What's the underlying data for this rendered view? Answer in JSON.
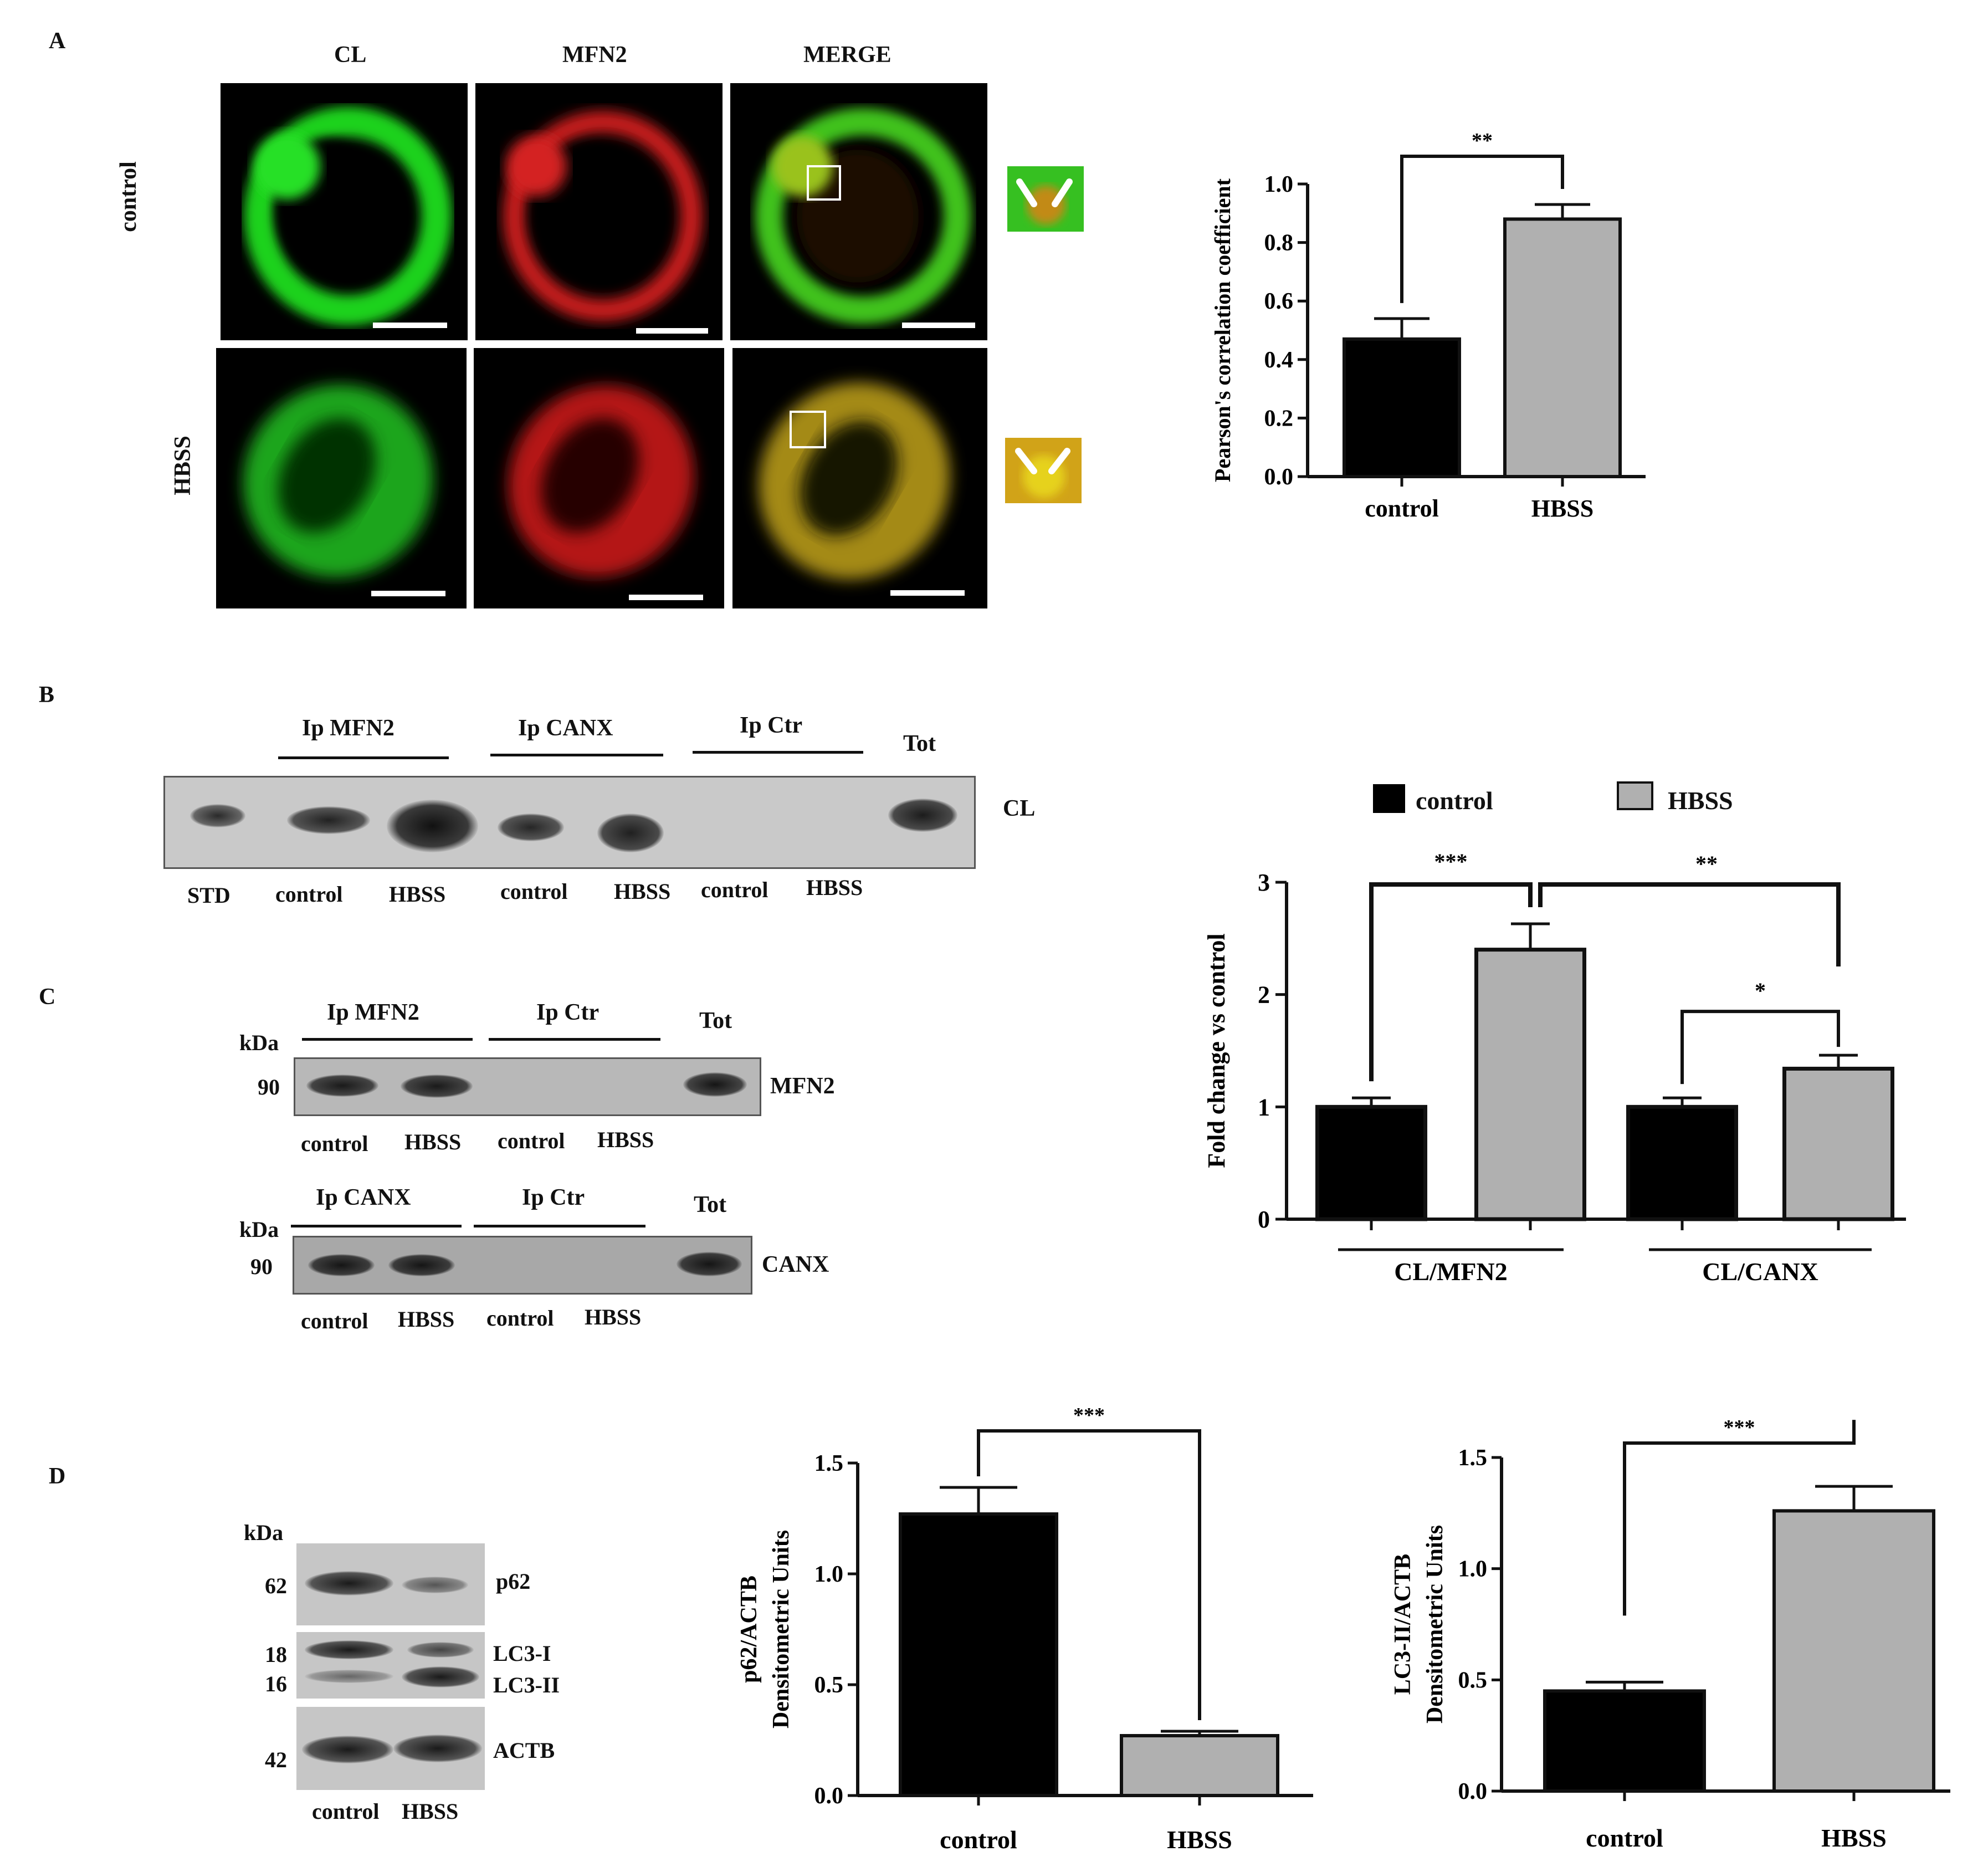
{
  "panels": {
    "A": {
      "letter": "A",
      "columns": [
        "CL",
        "MFN2",
        "MERGE"
      ],
      "rows": [
        "control",
        "HBSS"
      ]
    },
    "B": {
      "letter": "B",
      "groups": [
        "Ip MFN2",
        "Ip CANX",
        "Ip Ctr",
        "Tot"
      ],
      "lanes": [
        "STD",
        "control",
        "HBSS",
        "control",
        "HBSS",
        "control",
        "HBSS"
      ],
      "marker": "CL",
      "legend": {
        "control": "control",
        "hbss": "HBSS"
      }
    },
    "C": {
      "letter": "C",
      "top": {
        "kda": "kDa",
        "mw": "90",
        "groups": [
          "Ip MFN2",
          "Ip Ctr",
          "Tot"
        ],
        "lanes": [
          "control",
          "HBSS",
          "control",
          "HBSS"
        ],
        "marker": "MFN2"
      },
      "bottom": {
        "kda": "kDa",
        "mw": "90",
        "groups": [
          "Ip CANX",
          "Ip Ctr",
          "Tot"
        ],
        "lanes": [
          "control",
          "HBSS",
          "control",
          "HBSS"
        ],
        "marker": "CANX"
      }
    },
    "D": {
      "letter": "D",
      "kda": "kDa",
      "mws": [
        "62",
        "18",
        "16",
        "42"
      ],
      "markers": [
        "p62",
        "LC3-I",
        "LC3-II",
        "ACTB"
      ],
      "lanes": [
        "control",
        "HBSS"
      ]
    }
  },
  "chart_data": [
    {
      "type": "bar",
      "categories": [
        "control",
        "HBSS"
      ],
      "values": [
        0.47,
        0.88
      ],
      "errors": [
        0.07,
        0.05
      ],
      "ylabel": "Pearson's correlation coefficient",
      "ylim": [
        0,
        1.0
      ],
      "yticks": [
        "0.0",
        "0.2",
        "0.4",
        "0.6",
        "0.8",
        "1.0"
      ],
      "colors": [
        "#000000",
        "#b0b0b0"
      ],
      "significance": [
        {
          "between": [
            "control",
            "HBSS"
          ],
          "label": "**"
        }
      ]
    },
    {
      "type": "bar",
      "groups": [
        "CL/MFN2",
        "CL/CANX"
      ],
      "series": [
        {
          "name": "control",
          "values": [
            1.0,
            1.0
          ],
          "errors": [
            0.08,
            0.08
          ]
        },
        {
          "name": "HBSS",
          "values": [
            2.4,
            1.34
          ],
          "errors": [
            0.23,
            0.12
          ]
        }
      ],
      "ylabel": "Fold change vs control",
      "ylim": [
        0,
        3
      ],
      "yticks": [
        "0",
        "1",
        "2",
        "3"
      ],
      "legend": "top",
      "colors": [
        "#000000",
        "#b0b0b0"
      ],
      "significance": [
        {
          "between": [
            "CL/MFN2 control",
            "CL/MFN2 HBSS"
          ],
          "label": "***"
        },
        {
          "between": [
            "CL/MFN2 HBSS",
            "CL/CANX HBSS"
          ],
          "label": "**"
        },
        {
          "between": [
            "CL/CANX control",
            "CL/CANX HBSS"
          ],
          "label": "*"
        }
      ]
    },
    {
      "type": "bar",
      "categories": [
        "control",
        "HBSS"
      ],
      "values": [
        1.27,
        0.27
      ],
      "errors": [
        0.12,
        0.02
      ],
      "ylabel_lines": [
        "p62/ACTB",
        "Densitometric Units"
      ],
      "ylim": [
        0,
        1.5
      ],
      "yticks": [
        "0.0",
        "0.5",
        "1.0",
        "1.5"
      ],
      "colors": [
        "#000000",
        "#b0b0b0"
      ],
      "significance": [
        {
          "between": [
            "control",
            "HBSS"
          ],
          "label": "***"
        }
      ]
    },
    {
      "type": "bar",
      "categories": [
        "control",
        "HBSS"
      ],
      "values": [
        0.45,
        1.26
      ],
      "errors": [
        0.04,
        0.11
      ],
      "ylabel_lines": [
        "LC3-II/ACTB",
        "Densitometric Units"
      ],
      "ylim": [
        0,
        1.5
      ],
      "yticks": [
        "0.0",
        "0.5",
        "1.0",
        "1.5"
      ],
      "colors": [
        "#000000",
        "#b0b0b0"
      ],
      "significance": [
        {
          "between": [
            "control",
            "HBSS"
          ],
          "label": "***"
        }
      ]
    }
  ]
}
